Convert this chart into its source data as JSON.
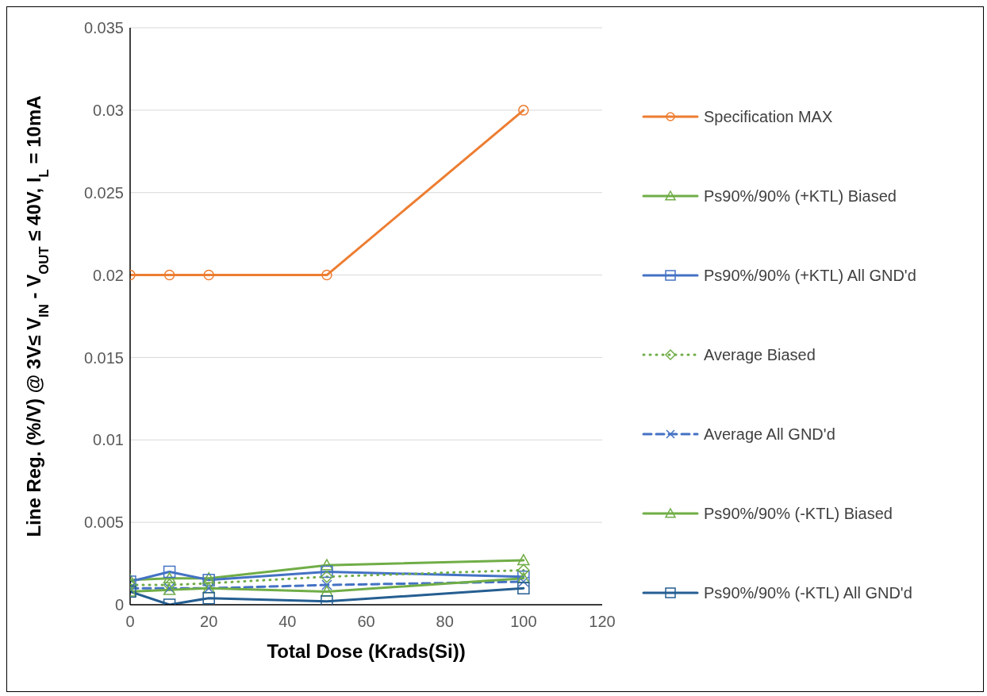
{
  "chart_data": {
    "type": "line",
    "xlabel": "Total Dose (Krads(Si))",
    "ylabel": "Line Reg. (%/V) @ 3V≤ V$_{IN}$ - V$_{OUT}$ ≤ 40V, I$_{L}$ = 10mA",
    "x": [
      0,
      10,
      20,
      50,
      100
    ],
    "xlim": [
      0,
      120
    ],
    "xticks": [
      0,
      20,
      40,
      60,
      80,
      100,
      120
    ],
    "ylim": [
      0,
      0.035
    ],
    "yticks": [
      0,
      0.005,
      0.01,
      0.015,
      0.02,
      0.025,
      0.03,
      0.035
    ],
    "grid": "y",
    "legend": "right",
    "series": [
      {
        "name": "Specification MAX",
        "color": "#ed7d31",
        "marker": "circle",
        "line_style": "solid",
        "values": [
          0.02,
          0.02,
          0.02,
          0.02,
          0.03
        ]
      },
      {
        "name": "Ps90%/90% (+KTL) Biased",
        "color": "#70ad47",
        "marker": "triangle",
        "line_style": "solid",
        "values": [
          0.0015,
          0.0016,
          0.0016,
          0.0024,
          0.0027
        ]
      },
      {
        "name": "Ps90%/90% (+KTL) All GND'd",
        "color": "#4472c4",
        "marker": "square",
        "line_style": "solid",
        "values": [
          0.0014,
          0.002,
          0.0015,
          0.002,
          0.0017
        ]
      },
      {
        "name": "Average Biased",
        "color": "#70ad47",
        "marker": "diamond",
        "line_style": "dotted",
        "values": [
          0.0012,
          0.0012,
          0.0013,
          0.0017,
          0.0021
        ]
      },
      {
        "name": "Average All GND'd",
        "color": "#4472c4",
        "marker": "cross",
        "line_style": "dashed",
        "values": [
          0.001,
          0.001,
          0.001,
          0.0012,
          0.0014
        ]
      },
      {
        "name": "Ps90%/90% (-KTL) Biased",
        "color": "#70ad47",
        "marker": "triangle",
        "line_style": "solid",
        "values": [
          0.0008,
          0.0009,
          0.001,
          0.0008,
          0.0016
        ]
      },
      {
        "name": "Ps90%/90% (-KTL) All GND'd",
        "color": "#255e91",
        "marker": "square",
        "line_style": "solid",
        "values": [
          0.0008,
          0,
          0.0004,
          0.0002,
          0.001
        ]
      }
    ]
  }
}
